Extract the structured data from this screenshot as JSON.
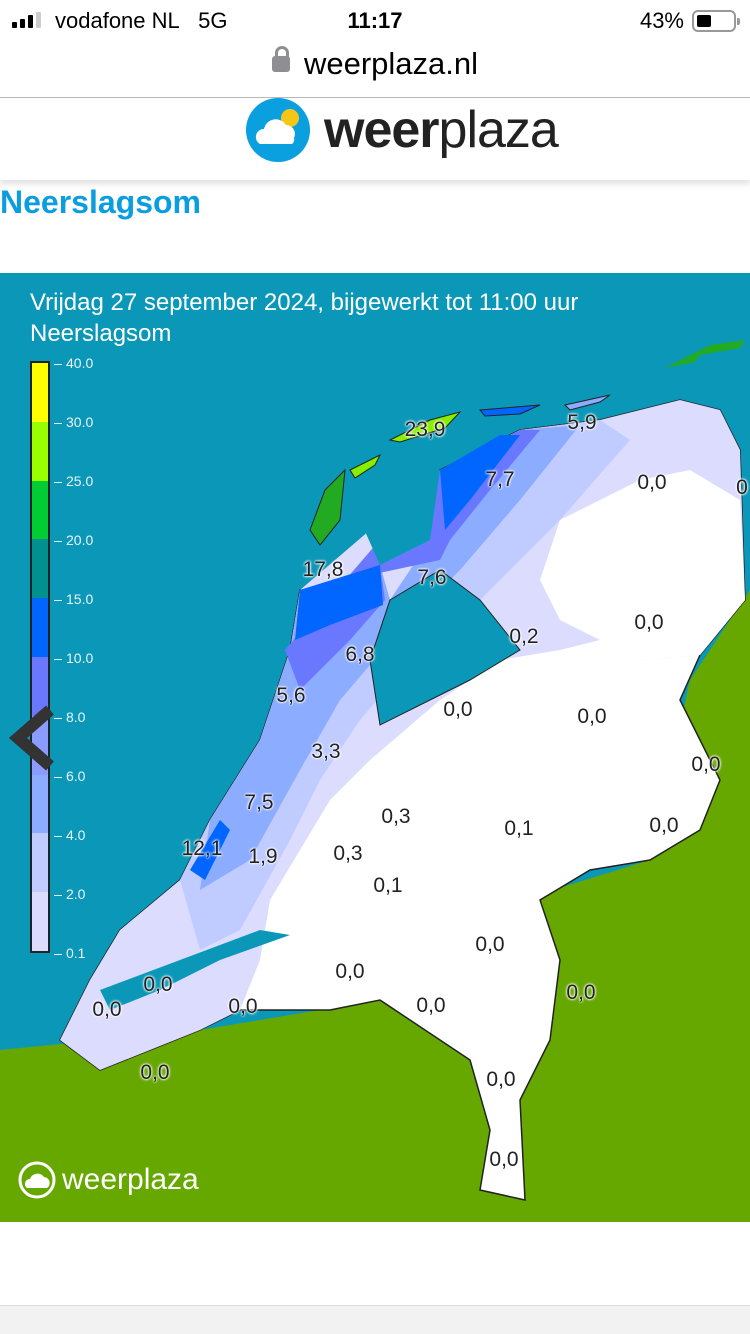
{
  "status_bar": {
    "carrier": "vodafone NL",
    "network": "5G",
    "time": "11:17",
    "battery": "43%",
    "battery_level": 0.43
  },
  "browser": {
    "url": "weerplaza.nl",
    "lock_icon": "lock-icon"
  },
  "header": {
    "logo_bold": "weer",
    "logo_light": "plaza"
  },
  "page": {
    "title": "Neerslagsom"
  },
  "map": {
    "title_line1": "Vrijdag 27 september 2024, bijgewerkt tot 11:00 uur",
    "title_line2": "Neerslagsom",
    "colors": {
      "sea": "#0b98b8",
      "land": "#66a800",
      "dry": "#ffffff"
    },
    "legend": {
      "ticks": [
        "40.0",
        "30.0",
        "25.0",
        "20.0",
        "15.0",
        "10.0",
        "8.0",
        "6.0",
        "4.0",
        "2.0",
        "0.1"
      ],
      "colors": [
        "#ffff00",
        "#99ff00",
        "#00cc33",
        "#009090",
        "#0066ff",
        "#6a78ff",
        "#8a9cff",
        "#8cacff",
        "#c0ccff",
        "#dcdcff"
      ]
    },
    "values": [
      "23,9",
      "5,9",
      "7,7",
      "0,0",
      "0",
      "17,8",
      "7,6",
      "0,2",
      "0,0",
      "6,8",
      "5,6",
      "0,0",
      "0,0",
      "0,0",
      "3,3",
      "7,5",
      "0,3",
      "0,1",
      "0,0",
      "12,1",
      "1,9",
      "0,3",
      "0,1",
      "0,0",
      "0,0",
      "0,0",
      "0,0",
      "0,0",
      "0,0",
      "0,0",
      "0,0",
      "0,0",
      "0,0"
    ],
    "watermark": "weerplaza"
  }
}
